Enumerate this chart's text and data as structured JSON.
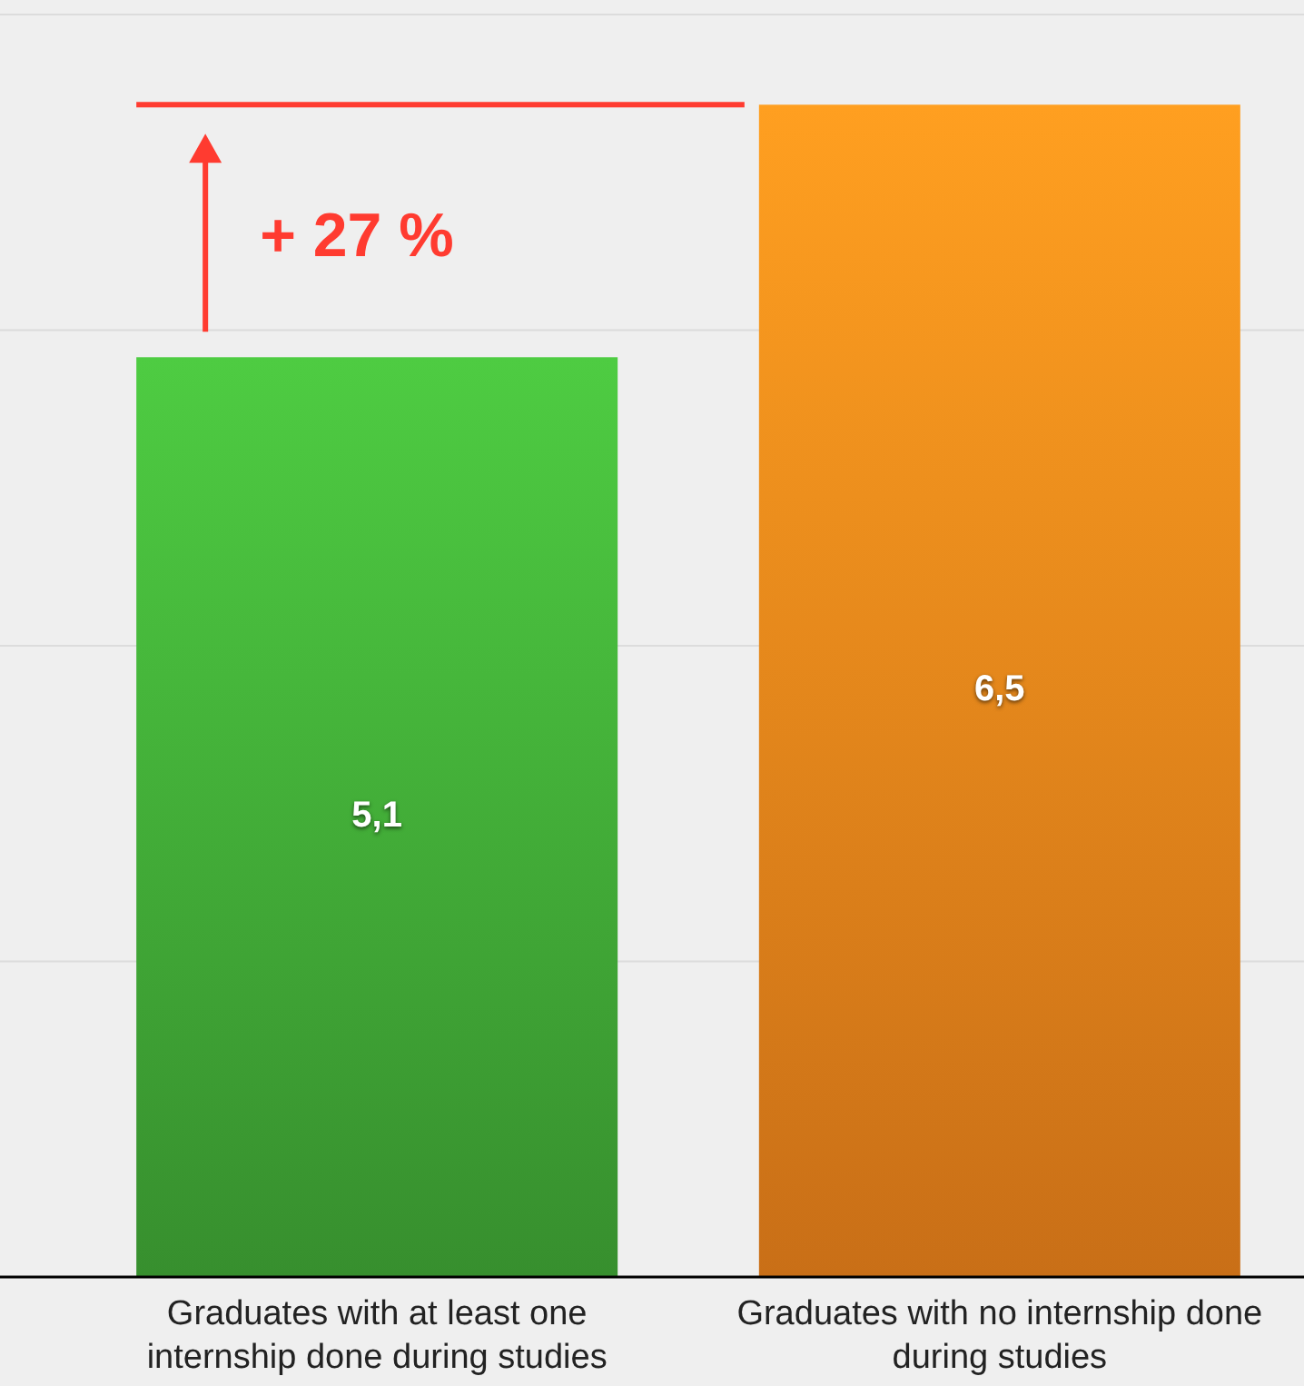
{
  "chart_data": {
    "type": "bar",
    "categories": [
      "Graduates with at least one internship done during studies",
      "Graduates with no internship done during studies"
    ],
    "values": [
      5.1,
      6.5
    ],
    "colors": [
      "#3fa535",
      "#e8801a"
    ],
    "value_labels": [
      "5,1",
      "6,5"
    ],
    "ylim": [
      0,
      7
    ],
    "yticks": [
      {
        "value": 0,
        "label": null
      },
      {
        "value": 1.75,
        "label": null
      },
      {
        "value": 3.5,
        "label": null
      },
      {
        "value": 5.25,
        "label": null
      },
      {
        "value": 7,
        "label": null
      }
    ],
    "grid": "y",
    "tick_labels": "x",
    "ref_lines": [
      {
        "axis": "y",
        "value": 6.5,
        "label": null,
        "color": "#ff3b30"
      }
    ],
    "annotations": [
      "+ 27 %"
    ]
  }
}
